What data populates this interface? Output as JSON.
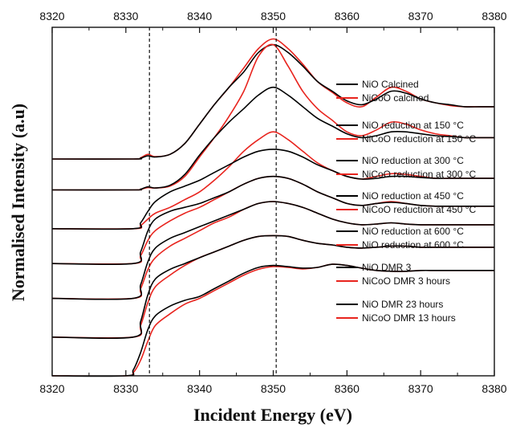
{
  "chart_data": {
    "type": "line",
    "xlabel": "Incident Energy (eV)",
    "ylabel": "Normalised Intensity (a.u)",
    "xlim": [
      8320,
      8380
    ],
    "x_ticks": [
      "8320",
      "8330",
      "8340",
      "8350",
      "8360",
      "8370",
      "8380"
    ],
    "top_x_ticks": [
      "8320",
      "8330",
      "8340",
      "8350",
      "8360",
      "8370",
      "8380"
    ],
    "y_tick_labels": "none",
    "reference_lines_x": [
      8333.2,
      8350.4
    ],
    "colors": {
      "NiO": "#000000",
      "NiCoO": "#e8241e"
    },
    "legend": [
      [
        "NiO Calcined",
        "NiCoO calcined"
      ],
      [
        "NiO reduction at 150 °C",
        "NiCoO reduction at 150 °C"
      ],
      [
        "NiO reduction at 300 °C",
        "NiCoO reduction at 300 °C"
      ],
      [
        "NiO reduction at 450 °C",
        "NiCoO reduction at 450 °C"
      ],
      [
        "NiO reduction at 600 °C",
        "NiO reduction at 600 °C"
      ],
      [
        "NiO DMR 3",
        "NiCoO DMR 3 hours"
      ],
      [
        "NiO DMR 23 hours",
        "NiCoO DMR 13 hours"
      ]
    ],
    "series_groups": [
      {
        "group": "calcined",
        "baseline": 5.6,
        "series": [
          {
            "name": "NiO Calcined",
            "color": "#000000",
            "x": [
              8320,
              8331,
              8332,
              8333,
              8334,
              8336,
              8338,
              8340,
              8342,
              8344,
              8346,
              8348,
              8350,
              8352,
              8354,
              8356,
              8358,
              8360,
              8362,
              8364,
              8366,
              8368,
              8370,
              8372,
              8374,
              8376,
              8378,
              8380
            ],
            "y": [
              0,
              0,
              0.02,
              0.08,
              0.05,
              0.12,
              0.4,
              0.9,
              1.4,
              1.85,
              2.25,
              2.75,
              2.95,
              2.75,
              2.4,
              2.0,
              1.75,
              1.5,
              1.4,
              1.55,
              1.75,
              1.7,
              1.55,
              1.45,
              1.4,
              1.35,
              1.35,
              1.35
            ]
          },
          {
            "name": "NiCoO calcined",
            "color": "#e8241e",
            "x": [
              8320,
              8331,
              8332,
              8333,
              8334,
              8336,
              8338,
              8340,
              8342,
              8344,
              8346,
              8348,
              8350,
              8352,
              8354,
              8356,
              8358,
              8360,
              8362,
              8364,
              8366,
              8368,
              8370,
              8372,
              8374,
              8376,
              8378,
              8380
            ],
            "y": [
              0,
              0,
              0.03,
              0.12,
              0.06,
              0.12,
              0.4,
              0.9,
              1.4,
              1.85,
              2.35,
              2.85,
              3.1,
              2.85,
              2.45,
              2.0,
              1.72,
              1.45,
              1.35,
              1.6,
              1.85,
              1.75,
              1.55,
              1.45,
              1.38,
              1.35,
              1.35,
              1.35
            ]
          }
        ]
      },
      {
        "group": "150",
        "baseline": 4.8,
        "series": [
          {
            "name": "NiO reduction at 150 °C",
            "color": "#000000",
            "x": [
              8320,
              8331,
              8332,
              8333,
              8334,
              8336,
              8338,
              8340,
              8342,
              8344,
              8346,
              8348,
              8350,
              8352,
              8354,
              8356,
              8358,
              8360,
              8362,
              8364,
              8366,
              8368,
              8370,
              8372,
              8374,
              8376,
              8378,
              8380
            ],
            "y": [
              0,
              0,
              0.02,
              0.08,
              0.05,
              0.12,
              0.4,
              0.9,
              1.35,
              1.75,
              2.1,
              2.45,
              2.65,
              2.45,
              2.15,
              1.85,
              1.65,
              1.45,
              1.35,
              1.4,
              1.5,
              1.5,
              1.45,
              1.4,
              1.38,
              1.35,
              1.35,
              1.35
            ]
          },
          {
            "name": "NiCoO reduction at 150 °C",
            "color": "#e8241e",
            "x": [
              8320,
              8331,
              8332,
              8333,
              8334,
              8336,
              8338,
              8340,
              8342,
              8344,
              8346,
              8348,
              8350,
              8352,
              8354,
              8356,
              8358,
              8360,
              8362,
              8364,
              8366,
              8368,
              8370,
              8372,
              8374,
              8376,
              8378,
              8380
            ],
            "y": [
              0,
              0,
              0.02,
              0.06,
              0.05,
              0.1,
              0.35,
              0.85,
              1.35,
              1.9,
              2.55,
              3.45,
              3.75,
              3.2,
              2.55,
              2.1,
              1.8,
              1.5,
              1.4,
              1.55,
              1.75,
              1.7,
              1.55,
              1.45,
              1.4,
              1.35,
              1.35,
              1.35
            ]
          }
        ]
      },
      {
        "group": "300",
        "baseline": 3.8,
        "series": [
          {
            "name": "NiO reduction at 300 °C",
            "color": "#000000",
            "x": [
              8320,
              8331,
              8332,
              8333,
              8334,
              8336,
              8338,
              8340,
              8342,
              8344,
              8346,
              8348,
              8350,
              8352,
              8354,
              8356,
              8358,
              8360,
              8362,
              8364,
              8366,
              8368,
              8370,
              8372,
              8374,
              8376,
              8378,
              8380
            ],
            "y": [
              0,
              0,
              0.15,
              0.45,
              0.7,
              0.95,
              1.1,
              1.25,
              1.45,
              1.65,
              1.85,
              2.0,
              2.05,
              2.0,
              1.85,
              1.65,
              1.5,
              1.35,
              1.28,
              1.3,
              1.35,
              1.35,
              1.32,
              1.3,
              1.3,
              1.3,
              1.3,
              1.3
            ]
          },
          {
            "name": "NiCoO reduction at 300 °C",
            "color": "#e8241e",
            "x": [
              8320,
              8331,
              8332,
              8333,
              8334,
              8336,
              8338,
              8340,
              8342,
              8344,
              8346,
              8348,
              8350,
              8352,
              8354,
              8356,
              8358,
              8360,
              8362,
              8364,
              8366,
              8368,
              8370,
              8372,
              8374,
              8376,
              8378,
              8380
            ],
            "y": [
              0,
              0,
              0.08,
              0.25,
              0.4,
              0.55,
              0.75,
              0.95,
              1.25,
              1.6,
              2.0,
              2.3,
              2.5,
              2.3,
              2.0,
              1.7,
              1.5,
              1.35,
              1.28,
              1.35,
              1.42,
              1.4,
              1.35,
              1.3,
              1.3,
              1.3,
              1.3,
              1.3
            ]
          }
        ]
      },
      {
        "group": "450",
        "baseline": 2.9,
        "series": [
          {
            "name": "NiO reduction at 450 °C",
            "color": "#000000",
            "x": [
              8320,
              8331,
              8332,
              8333,
              8334,
              8336,
              8338,
              8340,
              8342,
              8344,
              8346,
              8348,
              8350,
              8352,
              8354,
              8356,
              8358,
              8360,
              8362,
              8364,
              8366,
              8368,
              8370,
              8372,
              8374,
              8376,
              8378,
              8380
            ],
            "y": [
              0,
              0,
              0.3,
              0.85,
              1.15,
              1.35,
              1.45,
              1.55,
              1.7,
              1.85,
              2.05,
              2.2,
              2.25,
              2.2,
              2.05,
              1.85,
              1.7,
              1.55,
              1.5,
              1.55,
              1.58,
              1.55,
              1.5,
              1.48,
              1.48,
              1.48,
              1.48,
              1.48
            ]
          },
          {
            "name": "NiCoO reduction at 450 °C",
            "color": "#e8241e",
            "x": [
              8320,
              8331,
              8332,
              8333,
              8334,
              8336,
              8338,
              8340,
              8342,
              8344,
              8346,
              8348,
              8350,
              8352,
              8354,
              8356,
              8358,
              8360,
              8362,
              8364,
              8366,
              8368,
              8370,
              8372,
              8374,
              8376,
              8378,
              8380
            ],
            "y": [
              0,
              0,
              0.2,
              0.6,
              0.85,
              1.1,
              1.3,
              1.45,
              1.65,
              1.85,
              2.05,
              2.2,
              2.25,
              2.2,
              2.05,
              1.85,
              1.7,
              1.55,
              1.5,
              1.55,
              1.6,
              1.55,
              1.5,
              1.48,
              1.48,
              1.48,
              1.48,
              1.48
            ]
          }
        ]
      },
      {
        "group": "600",
        "baseline": 2.0,
        "series": [
          {
            "name": "NiO reduction at 600 °C",
            "color": "#000000",
            "x": [
              8320,
              8331,
              8332,
              8333,
              8334,
              8336,
              8338,
              8340,
              8342,
              8344,
              8346,
              8348,
              8350,
              8352,
              8354,
              8356,
              8358,
              8360,
              8362,
              8364,
              8366,
              8368,
              8370,
              8372,
              8374,
              8376,
              8378,
              8380
            ],
            "y": [
              0,
              0,
              0.35,
              0.95,
              1.3,
              1.55,
              1.7,
              1.85,
              2.0,
              2.15,
              2.3,
              2.45,
              2.5,
              2.45,
              2.35,
              2.2,
              2.05,
              1.95,
              1.9,
              1.92,
              1.95,
              1.92,
              1.9,
              1.9,
              1.9,
              1.9,
              1.9,
              1.9
            ]
          },
          {
            "name": "NiO reduction at 600 °C",
            "color": "#e8241e",
            "x": [
              8320,
              8331,
              8332,
              8333,
              8334,
              8336,
              8338,
              8340,
              8342,
              8344,
              8346,
              8348,
              8350,
              8352,
              8354,
              8356,
              8358,
              8360,
              8362,
              8364,
              8366,
              8368,
              8370,
              8372,
              8374,
              8376,
              8378,
              8380
            ],
            "y": [
              0,
              0,
              0.25,
              0.75,
              1.05,
              1.35,
              1.55,
              1.75,
              1.95,
              2.1,
              2.3,
              2.45,
              2.5,
              2.45,
              2.35,
              2.2,
              2.05,
              1.95,
              1.9,
              1.92,
              1.95,
              1.92,
              1.9,
              1.9,
              1.9,
              1.9,
              1.9,
              1.9
            ]
          }
        ]
      },
      {
        "group": "dmr3",
        "baseline": 1.0,
        "series": [
          {
            "name": "NiO DMR 3",
            "color": "#000000",
            "x": [
              8320,
              8331,
              8332,
              8333,
              8334,
              8336,
              8338,
              8340,
              8342,
              8344,
              8346,
              8348,
              8350,
              8352,
              8354,
              8356,
              8358,
              8360,
              8362,
              8364,
              8366,
              8368,
              8370,
              8372,
              8374,
              8376,
              8378,
              8380
            ],
            "y": [
              0,
              0,
              0.4,
              1.1,
              1.5,
              1.75,
              1.9,
              2.05,
              2.2,
              2.35,
              2.5,
              2.6,
              2.62,
              2.6,
              2.5,
              2.42,
              2.38,
              2.32,
              2.3,
              2.32,
              2.35,
              2.35,
              2.32,
              2.32,
              2.32,
              2.32,
              2.32,
              2.32
            ]
          },
          {
            "name": "NiCoO DMR 3 hours",
            "color": "#e8241e",
            "x": [
              8320,
              8331,
              8332,
              8333,
              8334,
              8336,
              8338,
              8340,
              8342,
              8344,
              8346,
              8348,
              8350,
              8352,
              8354,
              8356,
              8358,
              8360,
              8362,
              8364,
              8366,
              8368,
              8370,
              8372,
              8374,
              8376,
              8378,
              8380
            ],
            "y": [
              0,
              0,
              0.3,
              0.9,
              1.3,
              1.6,
              1.85,
              2.05,
              2.2,
              2.35,
              2.5,
              2.6,
              2.62,
              2.6,
              2.5,
              2.42,
              2.38,
              2.32,
              2.3,
              2.32,
              2.35,
              2.35,
              2.32,
              2.32,
              2.32,
              2.32,
              2.32,
              2.32
            ]
          }
        ]
      },
      {
        "group": "dmr23",
        "baseline": 0.0,
        "series": [
          {
            "name": "NiO DMR 23 hours",
            "color": "#000000",
            "x": [
              8320,
              8330,
              8331,
              8332,
              8333,
              8334,
              8336,
              8338,
              8340,
              8342,
              8344,
              8346,
              8348,
              8350,
              8352,
              8354,
              8356,
              8358,
              8360,
              8362,
              8364,
              8366,
              8368,
              8370,
              8372,
              8374,
              8376,
              8378,
              8380
            ],
            "y": [
              0,
              0,
              0.15,
              0.6,
              1.2,
              1.55,
              1.8,
              1.95,
              2.05,
              2.25,
              2.45,
              2.65,
              2.8,
              2.85,
              2.82,
              2.78,
              2.8,
              2.88,
              2.85,
              2.78,
              2.72,
              2.7,
              2.7,
              2.72,
              2.72,
              2.72,
              2.72,
              2.72,
              2.72
            ]
          },
          {
            "name": "NiCoO DMR 13 hours",
            "color": "#e8241e",
            "x": [
              8320,
              8330,
              8331,
              8332,
              8333,
              8334,
              8336,
              8338,
              8340,
              8342,
              8344,
              8346,
              8348,
              8350,
              8352,
              8354,
              8356,
              8358,
              8360,
              8362,
              8364,
              8366,
              8368,
              8370,
              8372,
              8374,
              8376,
              8378,
              8380
            ],
            "y": [
              0,
              0,
              0.08,
              0.4,
              0.9,
              1.3,
              1.6,
              1.85,
              2.0,
              2.2,
              2.4,
              2.6,
              2.75,
              2.82,
              2.8,
              2.76,
              2.8,
              2.88,
              2.85,
              2.78,
              2.72,
              2.7,
              2.7,
              2.72,
              2.72,
              2.72,
              2.72,
              2.72,
              2.72
            ]
          }
        ]
      }
    ]
  }
}
